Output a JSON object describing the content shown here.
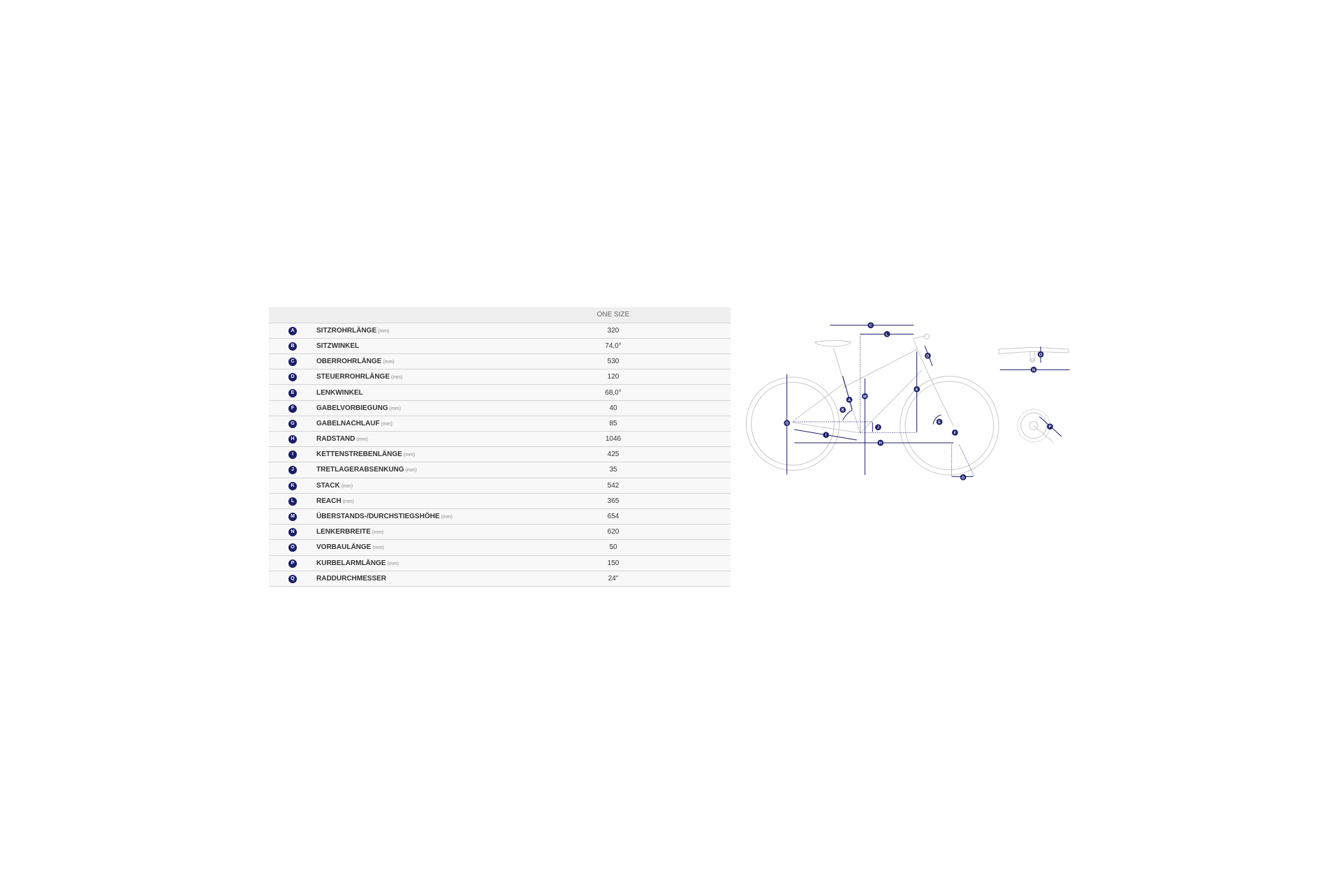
{
  "table": {
    "column_header": "ONE SIZE",
    "rows": [
      {
        "letter": "A",
        "label": "SITZROHRLÄNGE",
        "unit": "(mm)",
        "value": "320"
      },
      {
        "letter": "B",
        "label": "SITZWINKEL",
        "unit": "",
        "value": "74,0°"
      },
      {
        "letter": "C",
        "label": "OBERROHRLÄNGE",
        "unit": "(mm)",
        "value": "530"
      },
      {
        "letter": "D",
        "label": "STEUERROHRLÄNGE",
        "unit": "(mm)",
        "value": "120"
      },
      {
        "letter": "E",
        "label": "LENKWINKEL",
        "unit": "",
        "value": "68,0°"
      },
      {
        "letter": "F",
        "label": "GABELVORBIEGUNG",
        "unit": "(mm)",
        "value": "40"
      },
      {
        "letter": "G",
        "label": "GABELNACHLAUF",
        "unit": "(mm)",
        "value": "85"
      },
      {
        "letter": "H",
        "label": "RADSTAND",
        "unit": "(mm)",
        "value": "1046"
      },
      {
        "letter": "I",
        "label": "KETTENSTREBENLÄNGE",
        "unit": "(mm)",
        "value": "425"
      },
      {
        "letter": "J",
        "label": "TRETLAGERABSENKUNG",
        "unit": "(mm)",
        "value": "35"
      },
      {
        "letter": "K",
        "label": "STACK",
        "unit": "(mm)",
        "value": "542"
      },
      {
        "letter": "L",
        "label": "REACH",
        "unit": "(mm)",
        "value": "365"
      },
      {
        "letter": "M",
        "label": "ÜBERSTANDS-/DURCHSTIEGSHÖHE",
        "unit": "(mm)",
        "value": "654"
      },
      {
        "letter": "N",
        "label": "LENKERBREITE",
        "unit": "(mm)",
        "value": "620"
      },
      {
        "letter": "O",
        "label": "VORBAULÄNGE",
        "unit": "(mm)",
        "value": "50"
      },
      {
        "letter": "P",
        "label": "KURBELARMLÄNGE",
        "unit": "(mm)",
        "value": "150"
      },
      {
        "letter": "Q",
        "label": "RADDURCHMESSER",
        "unit": "",
        "value": "24\""
      }
    ]
  },
  "diagram": {
    "markers": [
      "C",
      "L",
      "D",
      "M",
      "K",
      "A",
      "B",
      "Q",
      "J",
      "I",
      "H",
      "E",
      "F",
      "G",
      "O",
      "N",
      "P"
    ],
    "colors": {
      "dimension": "#1b1e6b",
      "frame": "#c8c8c8"
    }
  }
}
